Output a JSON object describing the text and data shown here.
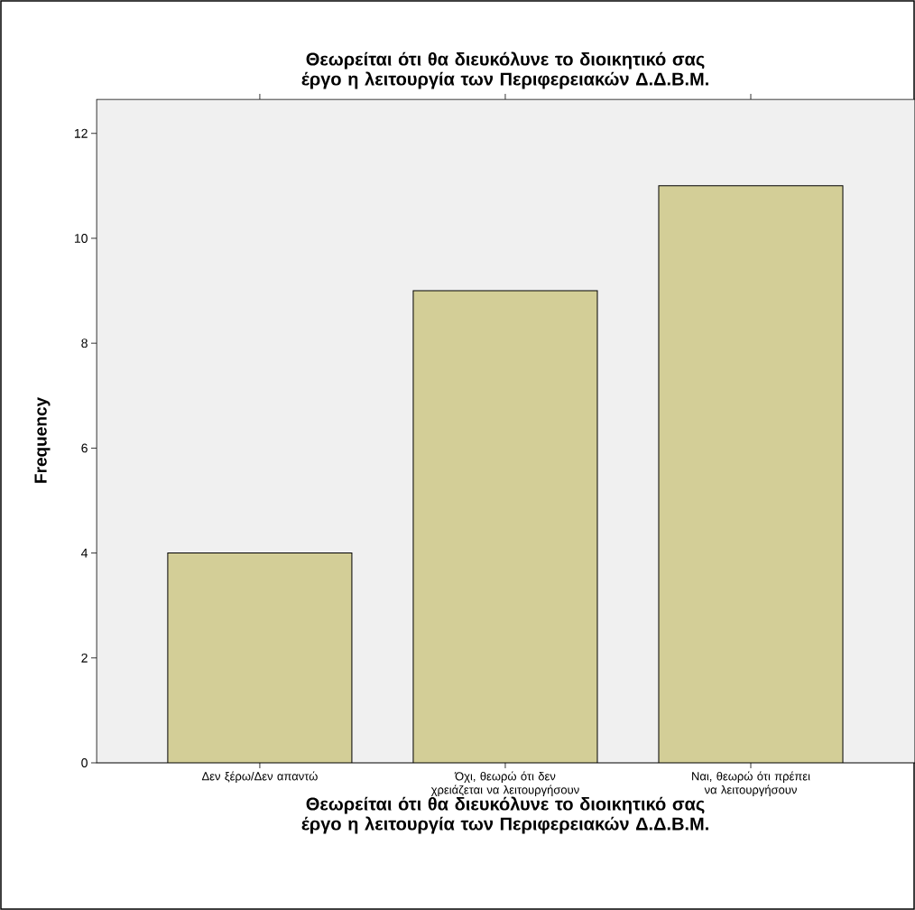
{
  "chart_data": {
    "type": "bar",
    "title": "Θεωρείται ότι θα διευκόλυνε το διοικητικό σας έργο η λειτουργία των Περιφερειακών Δ.Δ.Β.Μ.",
    "xlabel": "Θεωρείται ότι θα διευκόλυνε το διοικητικό σας έργο η λειτουργία των Περιφερειακών Δ.Δ.Β.Μ.",
    "ylabel": "Frequency",
    "categories": [
      "Δεν ξέρω/Δεν απαντώ",
      "Όχι, θεωρώ ότι δεν χρειάζεται να λειτουργήσουν",
      "Ναι, θεωρώ ότι πρέπει να λειτουργήσουν"
    ],
    "values": [
      4,
      9,
      11
    ],
    "color": "#d3ce97",
    "ylim": [
      0,
      12.65
    ],
    "yticks": [
      0,
      2,
      4,
      6,
      8,
      10,
      12
    ]
  }
}
